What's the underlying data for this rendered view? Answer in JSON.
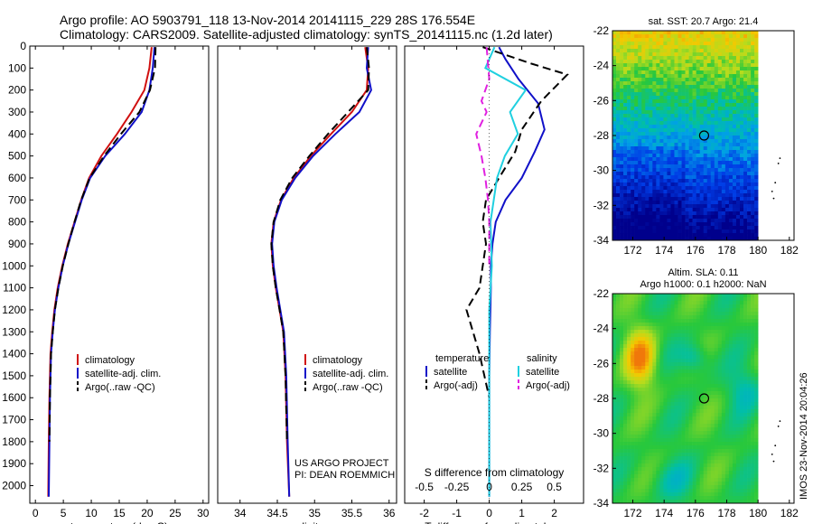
{
  "title": {
    "line1": "Argo profile: AO 5903791_118 13-Nov-2014 20141115_229 28S 176.554E",
    "line2": "Climatology: CARS2009. Satellite-adjusted climatology: synTS_20141115.nc (1.2d later)"
  },
  "credits": {
    "line1": "US ARGO PROJECT",
    "line2": "PI: DEAN ROEMMICH"
  },
  "side_text": "IMOS 23-Nov-2014 20:04:26",
  "colors": {
    "climatology": "#d01010",
    "satellite": "#1010c8",
    "argo": "#000000",
    "sal_satellite": "#20d0e0",
    "sal_argo": "#e020e0"
  },
  "chart_data": [
    {
      "type": "line",
      "name": "temperature-panel",
      "xlabel": "temperature (deg C)",
      "ylabel": "",
      "xlim": [
        -1,
        31
      ],
      "ylim": [
        2080,
        0
      ],
      "xticks": [
        0,
        5,
        10,
        15,
        20,
        25,
        30
      ],
      "yticks": [
        0,
        100,
        200,
        300,
        400,
        500,
        600,
        700,
        800,
        900,
        1000,
        1100,
        1200,
        1300,
        1400,
        1500,
        1600,
        1700,
        1800,
        1900,
        2000
      ],
      "legend": [
        "climatology",
        "satellite-adj. clim.",
        "Argo(..raw -QC)"
      ],
      "series": [
        {
          "name": "climatology",
          "style": "solid",
          "color": "#d01010",
          "x": [
            20.8,
            20.4,
            19.5,
            17.2,
            14.6,
            11.8,
            9.6,
            8.2,
            7.0,
            5.8,
            4.8,
            4.0,
            3.4,
            3.0,
            2.7,
            2.5,
            2.4,
            2.3
          ],
          "y": [
            5,
            100,
            200,
            300,
            400,
            500,
            600,
            700,
            800,
            900,
            1000,
            1100,
            1200,
            1300,
            1400,
            1600,
            1800,
            2050
          ]
        },
        {
          "name": "satellite-adj. clim.",
          "style": "solid",
          "color": "#1010c8",
          "x": [
            21.3,
            21.0,
            20.4,
            19.0,
            16.0,
            12.5,
            9.8,
            8.3,
            7.1,
            5.9,
            4.9,
            4.1,
            3.5,
            3.1,
            2.8,
            2.6,
            2.5,
            2.4
          ],
          "y": [
            5,
            100,
            200,
            300,
            400,
            500,
            600,
            700,
            800,
            900,
            1000,
            1100,
            1200,
            1300,
            1400,
            1600,
            1800,
            2050
          ]
        },
        {
          "name": "Argo(..raw -QC)",
          "style": "dash",
          "color": "#000000",
          "x": [
            21.5,
            21.4,
            20.5,
            18.6,
            15.3,
            12.3,
            9.7,
            8.2,
            7.0,
            5.9,
            4.9,
            4.1,
            3.5,
            3.1,
            2.8,
            2.6,
            2.5
          ],
          "y": [
            5,
            100,
            200,
            300,
            400,
            500,
            600,
            700,
            800,
            900,
            1000,
            1100,
            1200,
            1300,
            1400,
            1600,
            1800
          ]
        }
      ]
    },
    {
      "type": "line",
      "name": "salinity-panel",
      "xlabel": "salinity",
      "ylabel": "",
      "xlim": [
        33.7,
        36.1
      ],
      "ylim": [
        2080,
        0
      ],
      "xticks": [
        34,
        34.5,
        35,
        35.5,
        36
      ],
      "xtick_labels": [
        "34",
        "34.5",
        "35",
        "35.5",
        "36"
      ],
      "legend": [
        "climatology",
        "satellite-adj. clim.",
        "Argo(..raw -QC)"
      ],
      "series": [
        {
          "name": "climatology",
          "style": "solid",
          "color": "#d01010",
          "x": [
            35.68,
            35.72,
            35.7,
            35.5,
            35.22,
            34.95,
            34.72,
            34.55,
            34.45,
            34.42,
            34.44,
            34.48,
            34.53,
            34.58,
            34.61,
            34.63,
            34.66
          ],
          "y": [
            5,
            100,
            200,
            300,
            400,
            500,
            600,
            700,
            800,
            900,
            1000,
            1100,
            1200,
            1300,
            1500,
            1800,
            2050
          ]
        },
        {
          "name": "satellite-adj. clim.",
          "style": "solid",
          "color": "#1010c8",
          "x": [
            35.72,
            35.7,
            35.76,
            35.6,
            35.28,
            34.98,
            34.74,
            34.56,
            34.46,
            34.43,
            34.45,
            34.49,
            34.54,
            34.59,
            34.62,
            34.64,
            34.66
          ],
          "y": [
            5,
            100,
            200,
            300,
            400,
            500,
            600,
            700,
            800,
            900,
            1000,
            1100,
            1200,
            1300,
            1500,
            1800,
            2050
          ]
        },
        {
          "name": "Argo(..raw -QC)",
          "style": "dash",
          "color": "#000000",
          "x": [
            35.7,
            35.73,
            35.72,
            35.45,
            35.18,
            34.93,
            34.7,
            34.54,
            34.45,
            34.42,
            34.44,
            34.48,
            34.53,
            34.58,
            34.61,
            34.63
          ],
          "y": [
            5,
            100,
            200,
            300,
            400,
            500,
            600,
            700,
            800,
            900,
            1000,
            1100,
            1200,
            1300,
            1500,
            1800
          ]
        }
      ]
    },
    {
      "type": "line",
      "name": "difference-panel",
      "xlabel": "T difference from climatology",
      "xlabel2": "S difference from climatology",
      "xlim": [
        -2.6,
        2.9
      ],
      "ylim": [
        2080,
        0
      ],
      "xticks": [
        -2,
        -1,
        0,
        1,
        2
      ],
      "sticks": [
        -0.5,
        -0.25,
        0,
        0.25,
        0.5
      ],
      "stick_labels": [
        "-0.5",
        "-0.25",
        "0",
        "0.25",
        "0.5"
      ],
      "legend_headers": [
        "temperature",
        "salinity"
      ],
      "legend": [
        "satellite",
        "Argo(-adj)",
        "satellite",
        "Argo(-adj)"
      ],
      "series": [
        {
          "name": "T satellite",
          "style": "solid",
          "color": "#1010c8",
          "x": [
            0.3,
            0.5,
            0.9,
            1.5,
            1.7,
            1.4,
            1.0,
            0.5,
            0.2,
            0.1,
            0.05,
            0.05,
            0.02,
            0.0,
            0.0,
            0.0
          ],
          "y": [
            5,
            60,
            150,
            260,
            380,
            480,
            600,
            700,
            800,
            900,
            1000,
            1100,
            1300,
            1500,
            1800,
            2050
          ]
        },
        {
          "name": "T Argo(-adj)",
          "style": "dash",
          "color": "#000000",
          "x": [
            -0.2,
            1.3,
            2.4,
            1.6,
            1.0,
            0.8,
            0.3,
            -0.1,
            -0.2,
            -0.1,
            -0.2,
            -0.3,
            -0.7,
            -0.3,
            0.0
          ],
          "y": [
            5,
            80,
            130,
            250,
            380,
            480,
            600,
            700,
            800,
            900,
            1000,
            1100,
            1200,
            1400,
            1600
          ]
        },
        {
          "name": "S satellite",
          "style": "solid",
          "color": "#20d0e0",
          "x": [
            0.04,
            -0.03,
            0.28,
            0.16,
            0.22,
            0.12,
            0.06,
            0.01,
            0.02,
            0.0,
            0.0,
            0.0,
            0.0
          ],
          "y": [
            5,
            100,
            200,
            300,
            400,
            500,
            600,
            800,
            1000,
            1200,
            1500,
            1800,
            2050
          ]
        },
        {
          "name": "S Argo(-adj)",
          "style": "dash",
          "color": "#e020e0",
          "x": [
            -0.02,
            0.0,
            -0.06,
            -0.02,
            -0.1,
            -0.06,
            -0.03,
            -0.01,
            0.0,
            0.0
          ],
          "y": [
            5,
            150,
            250,
            300,
            400,
            500,
            600,
            700,
            800,
            1000
          ]
        }
      ]
    },
    {
      "type": "heatmap",
      "name": "sst-map",
      "title": "sat. SST: 20.7  Argo: 21.4",
      "xlim": [
        170.7,
        182.3
      ],
      "ylim": [
        -34,
        -22
      ],
      "xticks": [
        172,
        174,
        176,
        178,
        180,
        182
      ],
      "yticks": [
        -22,
        -24,
        -26,
        -28,
        -30,
        -32,
        -34
      ],
      "marker": {
        "x": 176.554,
        "y": -28
      }
    },
    {
      "type": "heatmap",
      "name": "sla-map",
      "title": "Altim. SLA: 0.11",
      "subtitle": "Argo h1000: 0.1 h2000: NaN",
      "xlim": [
        170.7,
        182.3
      ],
      "ylim": [
        -34,
        -22
      ],
      "xticks": [
        172,
        174,
        176,
        178,
        180,
        182
      ],
      "yticks": [
        -22,
        -24,
        -26,
        -28,
        -30,
        -32,
        -34
      ],
      "marker": {
        "x": 176.554,
        "y": -28
      }
    }
  ]
}
